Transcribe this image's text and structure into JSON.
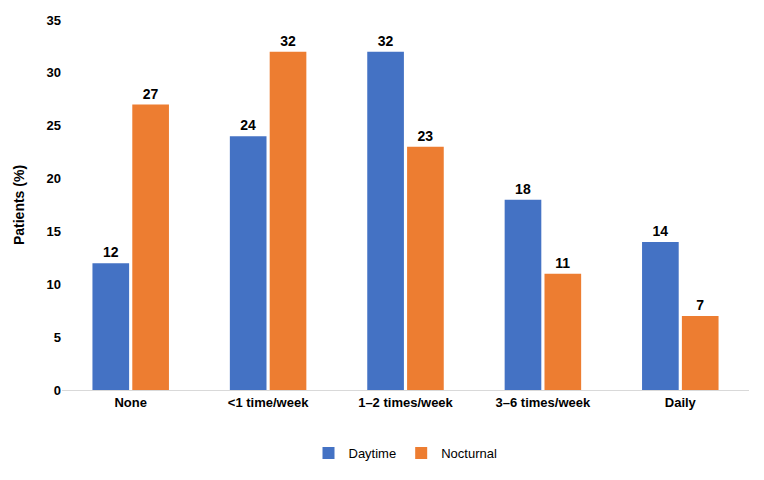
{
  "chart_data": {
    "type": "bar",
    "categories": [
      "None",
      "<1 time/week",
      "1–2 times/week",
      "3–6 times/week",
      "Daily"
    ],
    "series": [
      {
        "name": "Daytime",
        "color": "#4472c4",
        "values": [
          12,
          24,
          32,
          18,
          14
        ]
      },
      {
        "name": "Nocturnal",
        "color": "#ed7d31",
        "values": [
          27,
          32,
          23,
          11,
          7
        ]
      }
    ],
    "y_label": "Patients (%)",
    "ylim": [
      0,
      35
    ],
    "yticks": [
      0,
      5,
      10,
      15,
      20,
      25,
      30,
      35
    ],
    "grid": false,
    "legend": "bottom",
    "data_labels": true
  }
}
